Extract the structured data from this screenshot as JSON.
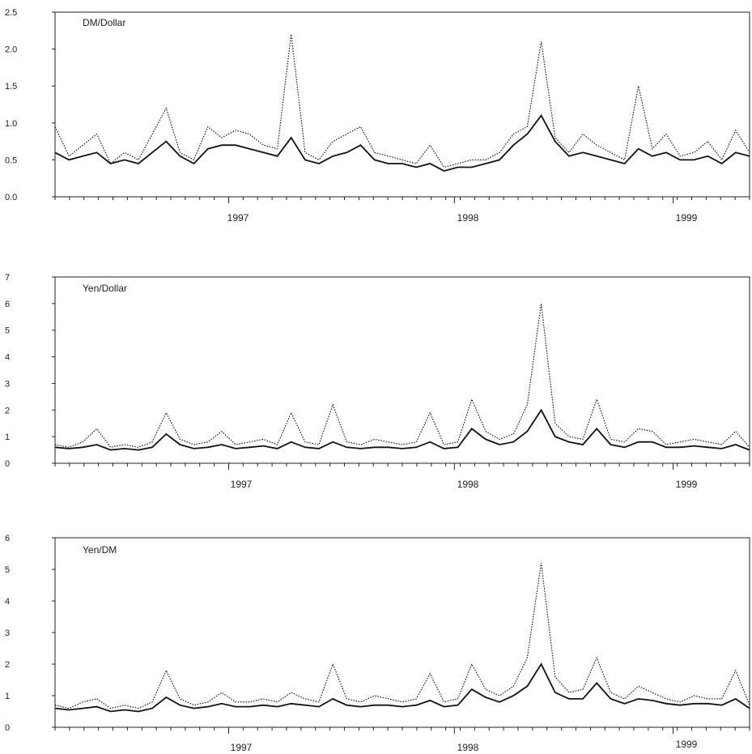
{
  "chart_data": [
    {
      "type": "line",
      "title": "DM/Dollar",
      "ylim": [
        0,
        2.5
      ],
      "yticks": [
        "0.0",
        "0.5",
        "1.0",
        "1.5",
        "2.0",
        "2.5"
      ],
      "xlabels": [
        "1997",
        "1998",
        "1999"
      ],
      "series": [
        {
          "style": "dotted",
          "x": [
            0.0,
            0.02,
            0.04,
            0.06,
            0.08,
            0.1,
            0.12,
            0.14,
            0.16,
            0.18,
            0.2,
            0.22,
            0.24,
            0.26,
            0.28,
            0.3,
            0.32,
            0.34,
            0.36,
            0.38,
            0.4,
            0.42,
            0.44,
            0.46,
            0.48,
            0.5,
            0.52,
            0.54,
            0.56,
            0.58,
            0.6,
            0.62,
            0.64,
            0.66,
            0.68,
            0.7,
            0.72,
            0.74,
            0.76,
            0.78,
            0.8,
            0.82,
            0.84,
            0.86,
            0.88,
            0.9,
            0.92,
            0.94,
            0.96,
            0.98,
            1.0
          ],
          "values": [
            0.95,
            0.55,
            0.7,
            0.85,
            0.45,
            0.6,
            0.5,
            0.85,
            1.2,
            0.6,
            0.5,
            0.95,
            0.8,
            0.9,
            0.85,
            0.7,
            0.65,
            2.2,
            0.6,
            0.5,
            0.75,
            0.85,
            0.95,
            0.6,
            0.55,
            0.5,
            0.45,
            0.7,
            0.4,
            0.45,
            0.5,
            0.5,
            0.6,
            0.85,
            0.95,
            2.1,
            0.8,
            0.6,
            0.85,
            0.7,
            0.6,
            0.5,
            1.5,
            0.65,
            0.85,
            0.55,
            0.6,
            0.75,
            0.5,
            0.9,
            0.6
          ]
        },
        {
          "style": "solid",
          "x": [
            0.0,
            0.02,
            0.04,
            0.06,
            0.08,
            0.1,
            0.12,
            0.14,
            0.16,
            0.18,
            0.2,
            0.22,
            0.24,
            0.26,
            0.28,
            0.3,
            0.32,
            0.34,
            0.36,
            0.38,
            0.4,
            0.42,
            0.44,
            0.46,
            0.48,
            0.5,
            0.52,
            0.54,
            0.56,
            0.58,
            0.6,
            0.62,
            0.64,
            0.66,
            0.68,
            0.7,
            0.72,
            0.74,
            0.76,
            0.78,
            0.8,
            0.82,
            0.84,
            0.86,
            0.88,
            0.9,
            0.92,
            0.94,
            0.96,
            0.98,
            1.0
          ],
          "values": [
            0.6,
            0.5,
            0.55,
            0.6,
            0.45,
            0.5,
            0.45,
            0.6,
            0.75,
            0.55,
            0.45,
            0.65,
            0.7,
            0.7,
            0.65,
            0.6,
            0.55,
            0.8,
            0.5,
            0.45,
            0.55,
            0.6,
            0.7,
            0.5,
            0.45,
            0.45,
            0.4,
            0.45,
            0.35,
            0.4,
            0.4,
            0.45,
            0.5,
            0.7,
            0.85,
            1.1,
            0.75,
            0.55,
            0.6,
            0.55,
            0.5,
            0.45,
            0.65,
            0.55,
            0.6,
            0.5,
            0.5,
            0.55,
            0.45,
            0.6,
            0.55
          ]
        }
      ]
    },
    {
      "type": "line",
      "title": "Yen/Dollar",
      "ylim": [
        0,
        7
      ],
      "yticks": [
        "0",
        "1",
        "2",
        "3",
        "4",
        "5",
        "6",
        "7"
      ],
      "xlabels": [
        "1997",
        "1998",
        "1999"
      ],
      "series": [
        {
          "style": "dotted",
          "x": [
            0.0,
            0.02,
            0.04,
            0.06,
            0.08,
            0.1,
            0.12,
            0.14,
            0.16,
            0.18,
            0.2,
            0.22,
            0.24,
            0.26,
            0.28,
            0.3,
            0.32,
            0.34,
            0.36,
            0.38,
            0.4,
            0.42,
            0.44,
            0.46,
            0.48,
            0.5,
            0.52,
            0.54,
            0.56,
            0.58,
            0.6,
            0.62,
            0.64,
            0.66,
            0.68,
            0.7,
            0.72,
            0.74,
            0.76,
            0.78,
            0.8,
            0.82,
            0.84,
            0.86,
            0.88,
            0.9,
            0.92,
            0.94,
            0.96,
            0.98,
            1.0
          ],
          "values": [
            0.7,
            0.6,
            0.8,
            1.3,
            0.6,
            0.7,
            0.6,
            0.8,
            1.9,
            0.9,
            0.7,
            0.8,
            1.2,
            0.7,
            0.8,
            0.9,
            0.7,
            1.9,
            0.8,
            0.7,
            2.2,
            0.8,
            0.7,
            0.9,
            0.8,
            0.7,
            0.8,
            1.9,
            0.7,
            0.8,
            2.4,
            1.2,
            0.9,
            1.1,
            2.2,
            6.0,
            1.5,
            1.0,
            0.9,
            2.4,
            0.9,
            0.8,
            1.3,
            1.2,
            0.7,
            0.8,
            0.9,
            0.8,
            0.7,
            1.2,
            0.6
          ]
        },
        {
          "style": "solid",
          "x": [
            0.0,
            0.02,
            0.04,
            0.06,
            0.08,
            0.1,
            0.12,
            0.14,
            0.16,
            0.18,
            0.2,
            0.22,
            0.24,
            0.26,
            0.28,
            0.3,
            0.32,
            0.34,
            0.36,
            0.38,
            0.4,
            0.42,
            0.44,
            0.46,
            0.48,
            0.5,
            0.52,
            0.54,
            0.56,
            0.58,
            0.6,
            0.62,
            0.64,
            0.66,
            0.68,
            0.7,
            0.72,
            0.74,
            0.76,
            0.78,
            0.8,
            0.82,
            0.84,
            0.86,
            0.88,
            0.9,
            0.92,
            0.94,
            0.96,
            0.98,
            1.0
          ],
          "values": [
            0.6,
            0.55,
            0.6,
            0.7,
            0.5,
            0.55,
            0.5,
            0.6,
            1.1,
            0.7,
            0.55,
            0.6,
            0.7,
            0.55,
            0.6,
            0.65,
            0.55,
            0.8,
            0.6,
            0.55,
            0.8,
            0.6,
            0.55,
            0.6,
            0.6,
            0.55,
            0.6,
            0.8,
            0.55,
            0.6,
            1.3,
            0.9,
            0.7,
            0.8,
            1.2,
            2.0,
            1.0,
            0.8,
            0.7,
            1.3,
            0.7,
            0.6,
            0.8,
            0.8,
            0.6,
            0.6,
            0.65,
            0.6,
            0.55,
            0.7,
            0.5
          ]
        }
      ]
    },
    {
      "type": "line",
      "title": "Yen/DM",
      "ylim": [
        0,
        6
      ],
      "yticks": [
        "0",
        "1",
        "2",
        "3",
        "4",
        "5",
        "6"
      ],
      "xlabels": [
        "1997",
        "1998",
        "1999"
      ],
      "series": [
        {
          "style": "dotted",
          "x": [
            0.0,
            0.02,
            0.04,
            0.06,
            0.08,
            0.1,
            0.12,
            0.14,
            0.16,
            0.18,
            0.2,
            0.22,
            0.24,
            0.26,
            0.28,
            0.3,
            0.32,
            0.34,
            0.36,
            0.38,
            0.4,
            0.42,
            0.44,
            0.46,
            0.48,
            0.5,
            0.52,
            0.54,
            0.56,
            0.58,
            0.6,
            0.62,
            0.64,
            0.66,
            0.68,
            0.7,
            0.72,
            0.74,
            0.76,
            0.78,
            0.8,
            0.82,
            0.84,
            0.86,
            0.88,
            0.9,
            0.92,
            0.94,
            0.96,
            0.98,
            1.0
          ],
          "values": [
            0.7,
            0.6,
            0.8,
            0.9,
            0.6,
            0.7,
            0.6,
            0.8,
            1.8,
            0.9,
            0.7,
            0.8,
            1.1,
            0.8,
            0.8,
            0.9,
            0.8,
            1.1,
            0.9,
            0.8,
            2.0,
            0.9,
            0.8,
            1.0,
            0.9,
            0.8,
            0.9,
            1.7,
            0.8,
            0.9,
            2.0,
            1.2,
            1.0,
            1.3,
            2.2,
            5.2,
            1.6,
            1.1,
            1.2,
            2.2,
            1.1,
            0.9,
            1.3,
            1.1,
            0.9,
            0.8,
            1.0,
            0.9,
            0.9,
            1.8,
            0.7
          ]
        },
        {
          "style": "solid",
          "x": [
            0.0,
            0.02,
            0.04,
            0.06,
            0.08,
            0.1,
            0.12,
            0.14,
            0.16,
            0.18,
            0.2,
            0.22,
            0.24,
            0.26,
            0.28,
            0.3,
            0.32,
            0.34,
            0.36,
            0.38,
            0.4,
            0.42,
            0.44,
            0.46,
            0.48,
            0.5,
            0.52,
            0.54,
            0.56,
            0.58,
            0.6,
            0.62,
            0.64,
            0.66,
            0.68,
            0.7,
            0.72,
            0.74,
            0.76,
            0.78,
            0.8,
            0.82,
            0.84,
            0.86,
            0.88,
            0.9,
            0.92,
            0.94,
            0.96,
            0.98,
            1.0
          ],
          "values": [
            0.6,
            0.55,
            0.6,
            0.65,
            0.5,
            0.55,
            0.5,
            0.6,
            0.95,
            0.7,
            0.6,
            0.65,
            0.75,
            0.65,
            0.65,
            0.7,
            0.65,
            0.75,
            0.7,
            0.65,
            0.9,
            0.7,
            0.65,
            0.7,
            0.7,
            0.65,
            0.7,
            0.85,
            0.65,
            0.7,
            1.2,
            0.95,
            0.8,
            1.0,
            1.3,
            2.0,
            1.1,
            0.9,
            0.9,
            1.4,
            0.9,
            0.75,
            0.9,
            0.85,
            0.75,
            0.7,
            0.75,
            0.75,
            0.7,
            0.9,
            0.6
          ]
        }
      ]
    }
  ]
}
